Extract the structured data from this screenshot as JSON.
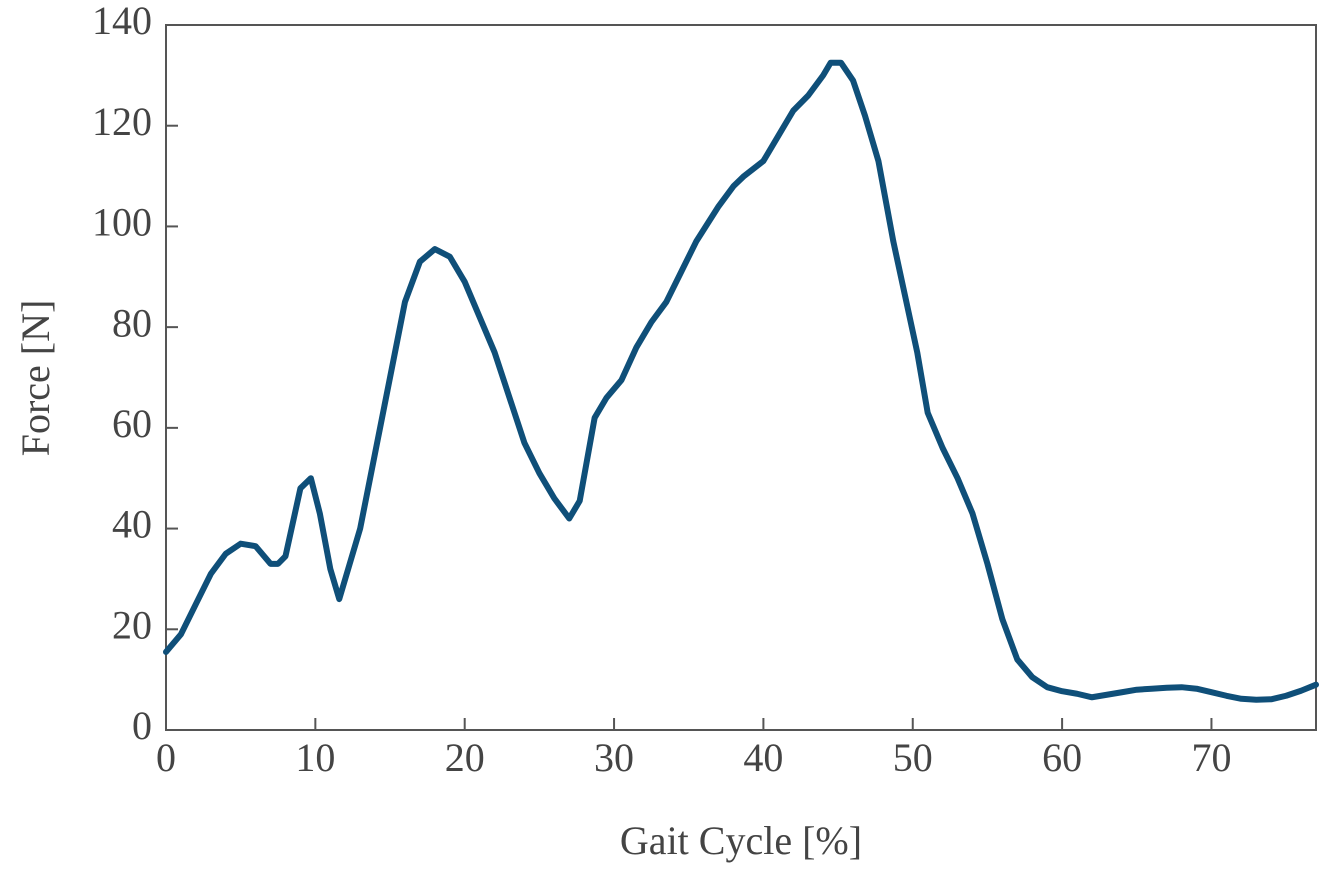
{
  "chart_data": {
    "type": "line",
    "xlabel": "Gait Cycle [%]",
    "ylabel": "Force [N]",
    "xlim": [
      0,
      77
    ],
    "ylim": [
      0,
      140
    ],
    "xticks": [
      0,
      10,
      20,
      30,
      40,
      50,
      60,
      70
    ],
    "yticks": [
      0,
      20,
      40,
      60,
      80,
      100,
      120,
      140
    ],
    "series": [
      {
        "color": "#0f4f79",
        "x": [
          0,
          1,
          2,
          3,
          4,
          5,
          6,
          7,
          7.5,
          8,
          9,
          9.7,
          10.3,
          11,
          11.6,
          12,
          13,
          14,
          15,
          16,
          17,
          18,
          19,
          20,
          21,
          22,
          23,
          24,
          25,
          26,
          27,
          27.7,
          28.7,
          29.5,
          30.5,
          31.5,
          32.5,
          33.5,
          34.5,
          35.5,
          37,
          38,
          38.7,
          40,
          41,
          42,
          43,
          44,
          44.5,
          45.2,
          46,
          46.8,
          47.7,
          48.7,
          49.5,
          50.3,
          51,
          52,
          53,
          54,
          55,
          56,
          57,
          58,
          59,
          60,
          61,
          62,
          63,
          64,
          65,
          66,
          67,
          68,
          69,
          70,
          71,
          72,
          73,
          74,
          75,
          76,
          77
        ],
        "values": [
          15.5,
          19,
          25,
          31,
          35,
          37,
          36.5,
          33,
          33,
          34.5,
          48,
          50,
          43,
          32,
          26,
          30,
          40,
          55,
          70,
          85,
          93,
          95.5,
          94,
          89,
          82,
          75,
          66,
          57,
          51,
          46,
          42,
          45.5,
          62,
          66,
          69.5,
          76,
          81,
          85,
          91,
          97,
          104,
          108,
          110,
          113,
          118,
          123,
          126,
          130,
          132.5,
          132.5,
          129,
          122,
          113,
          97,
          86,
          75,
          63,
          56,
          50,
          43,
          33,
          22,
          14,
          10.5,
          8.5,
          7.7,
          7.2,
          6.5,
          7,
          7.5,
          8,
          8.2,
          8.4,
          8.5,
          8.2,
          7.5,
          6.8,
          6.2,
          6,
          6.1,
          6.8,
          7.8,
          9
        ]
      }
    ]
  }
}
